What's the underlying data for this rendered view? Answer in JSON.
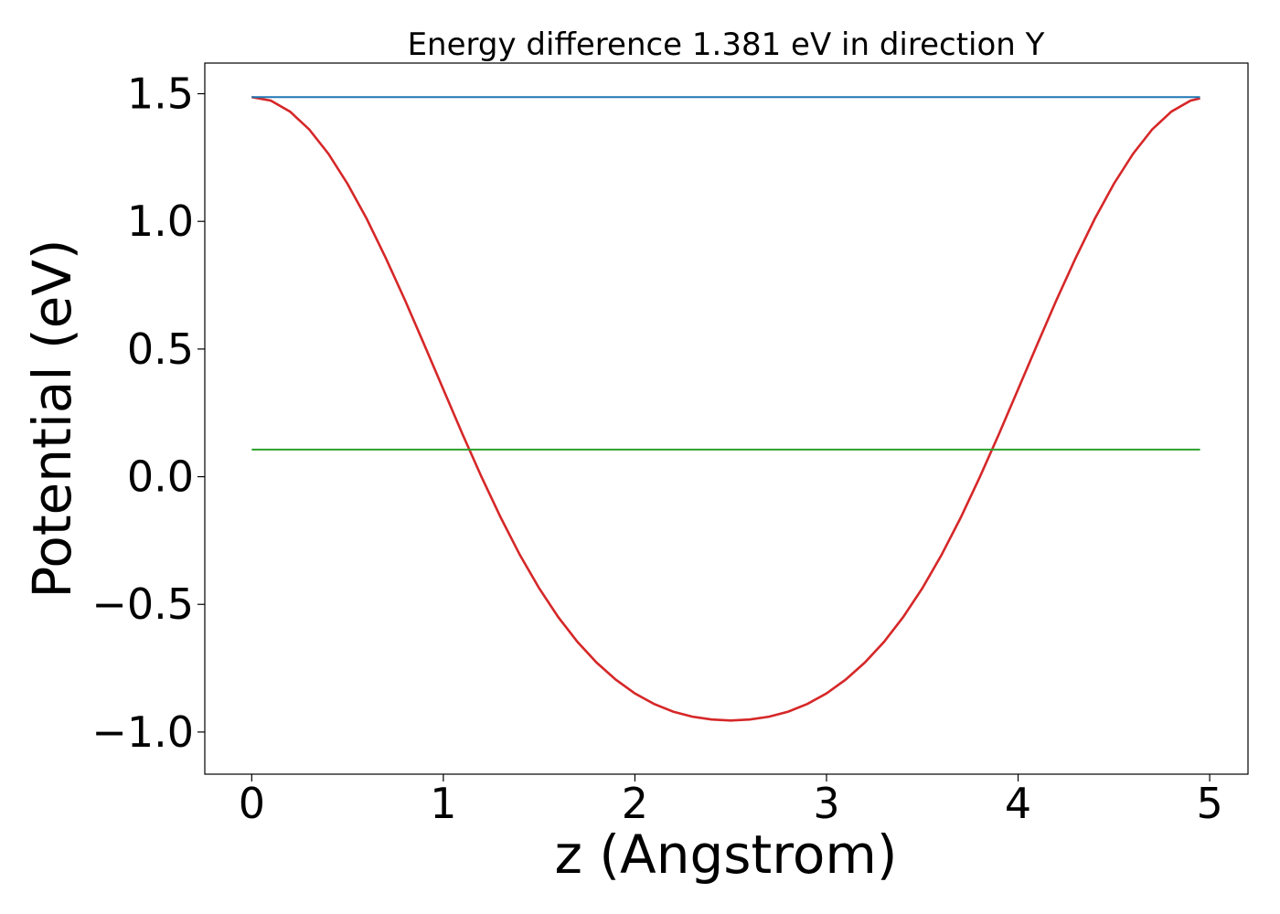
{
  "chart_data": {
    "type": "line",
    "title": "Energy difference 1.381 eV in direction Y",
    "xlabel": "z (Angstrom)",
    "ylabel": "Potential (eV)",
    "xlim": [
      -0.245,
      5.2
    ],
    "ylim": [
      -1.165,
      1.62
    ],
    "xticks": [
      0,
      1,
      2,
      3,
      4,
      5
    ],
    "xtick_labels": [
      "0",
      "1",
      "2",
      "3",
      "4",
      "5"
    ],
    "yticks": [
      -1.0,
      -0.5,
      0.0,
      0.5,
      1.0,
      1.5
    ],
    "ytick_labels": [
      "−1.0",
      "−0.5",
      "0.0",
      "0.5",
      "1.0",
      "1.5"
    ],
    "grid": false,
    "series": [
      {
        "color": "#d62728",
        "x": [
          0.0,
          0.1,
          0.2,
          0.3,
          0.4,
          0.5,
          0.6,
          0.7,
          0.8,
          0.9,
          1.0,
          1.1,
          1.2,
          1.3,
          1.4,
          1.5,
          1.6,
          1.7,
          1.8,
          1.9,
          2.0,
          2.1,
          2.2,
          2.3,
          2.4,
          2.5,
          2.6,
          2.7,
          2.8,
          2.9,
          3.0,
          3.1,
          3.2,
          3.3,
          3.4,
          3.5,
          3.6,
          3.7,
          3.8,
          3.9,
          4.0,
          4.1,
          4.2,
          4.3,
          4.4,
          4.5,
          4.6,
          4.7,
          4.8,
          4.9,
          4.95
        ],
        "y": [
          1.487,
          1.473,
          1.43,
          1.36,
          1.265,
          1.147,
          1.01,
          0.856,
          0.691,
          0.518,
          0.342,
          0.167,
          -0.002,
          -0.161,
          -0.307,
          -0.437,
          -0.55,
          -0.647,
          -0.728,
          -0.795,
          -0.849,
          -0.89,
          -0.92,
          -0.94,
          -0.951,
          -0.955,
          -0.951,
          -0.94,
          -0.92,
          -0.89,
          -0.849,
          -0.795,
          -0.728,
          -0.647,
          -0.55,
          -0.437,
          -0.307,
          -0.161,
          -0.002,
          0.167,
          0.342,
          0.518,
          0.691,
          0.856,
          1.01,
          1.147,
          1.265,
          1.36,
          1.43,
          1.473,
          1.482
        ]
      },
      {
        "color": "#1f77b4",
        "x": [
          0.0,
          4.95
        ],
        "y": [
          1.487,
          1.487
        ]
      },
      {
        "color": "#2ca02c",
        "x": [
          0.0,
          4.95
        ],
        "y": [
          0.106,
          0.106
        ]
      }
    ]
  }
}
